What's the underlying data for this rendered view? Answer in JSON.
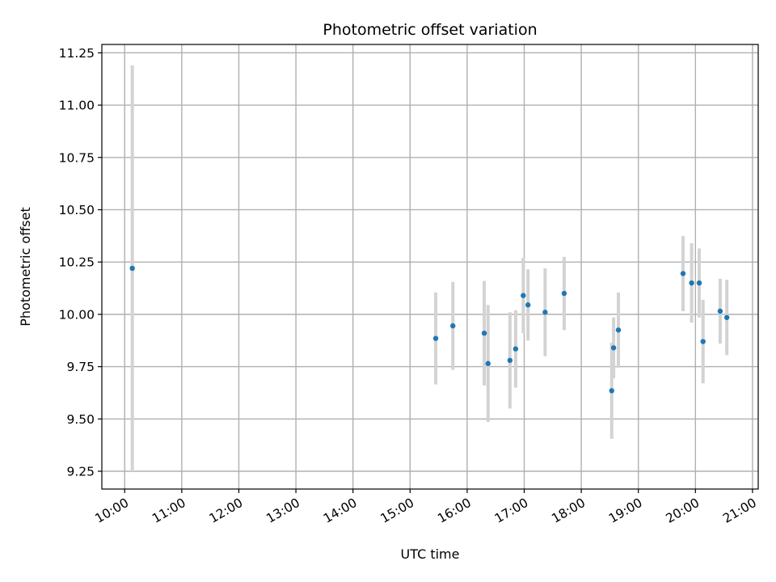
{
  "chart_data": {
    "type": "scatter",
    "title": "Photometric offset variation",
    "xlabel": "UTC time",
    "ylabel": "Photometric offset",
    "grid": true,
    "xlim": [
      "09:36",
      "21:06"
    ],
    "ylim": [
      9.165,
      11.29
    ],
    "x_ticks": [
      "10:00",
      "11:00",
      "12:00",
      "13:00",
      "14:00",
      "15:00",
      "16:00",
      "17:00",
      "18:00",
      "19:00",
      "20:00",
      "21:00"
    ],
    "y_ticks": [
      9.25,
      9.5,
      9.75,
      10.0,
      10.25,
      10.5,
      10.75,
      11.0,
      11.25
    ],
    "y_tick_labels": [
      "9.25",
      "9.50",
      "9.75",
      "10.00",
      "10.25",
      "10.50",
      "10.75",
      "11.00",
      "11.25"
    ],
    "point_color": "#1f77b4",
    "errorbar_color": "#d3d3d3",
    "series": [
      {
        "points": [
          {
            "x": "10:08",
            "y": 10.22,
            "err": 0.97
          },
          {
            "x": "15:27",
            "y": 9.885,
            "err": 0.22
          },
          {
            "x": "15:45",
            "y": 9.945,
            "err": 0.21
          },
          {
            "x": "16:18",
            "y": 9.91,
            "err": 0.25
          },
          {
            "x": "16:22",
            "y": 9.765,
            "err": 0.28
          },
          {
            "x": "16:45",
            "y": 9.78,
            "err": 0.23
          },
          {
            "x": "16:51",
            "y": 9.835,
            "err": 0.185
          },
          {
            "x": "16:59",
            "y": 10.09,
            "err": 0.18
          },
          {
            "x": "17:04",
            "y": 10.045,
            "err": 0.17
          },
          {
            "x": "17:22",
            "y": 10.01,
            "err": 0.21
          },
          {
            "x": "17:42",
            "y": 10.1,
            "err": 0.175
          },
          {
            "x": "18:32",
            "y": 9.635,
            "err": 0.23
          },
          {
            "x": "18:34",
            "y": 9.84,
            "err": 0.145
          },
          {
            "x": "18:39",
            "y": 9.925,
            "err": 0.18
          },
          {
            "x": "19:47",
            "y": 10.195,
            "err": 0.18
          },
          {
            "x": "19:56",
            "y": 10.15,
            "err": 0.19
          },
          {
            "x": "20:04",
            "y": 10.15,
            "err": 0.165
          },
          {
            "x": "20:08",
            "y": 9.87,
            "err": 0.2
          },
          {
            "x": "20:26",
            "y": 10.015,
            "err": 0.155
          },
          {
            "x": "20:33",
            "y": 9.985,
            "err": 0.18
          }
        ]
      }
    ]
  }
}
